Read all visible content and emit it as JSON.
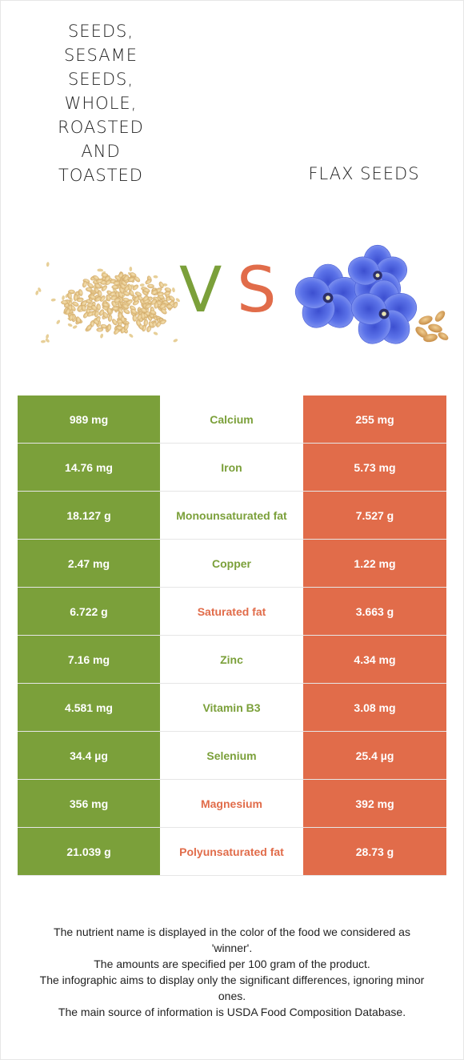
{
  "colors": {
    "winner_left": "#7ba03a",
    "winner_right": "#e16c4a",
    "background": "#ffffff"
  },
  "header": {
    "left_food": "Seeds,\nsesame\nseeds,\nwhole,\nroasted\nand\ntoasted",
    "right_food": "Flax seeds",
    "vs_v": "V",
    "vs_s": "S"
  },
  "images": {
    "left": "sesame-seeds-pile-image",
    "right": "flax-flowers-and-seeds-image"
  },
  "nutrients": [
    {
      "name": "Calcium",
      "left": "989 mg",
      "right": "255 mg",
      "winner": "left"
    },
    {
      "name": "Iron",
      "left": "14.76 mg",
      "right": "5.73 mg",
      "winner": "left"
    },
    {
      "name": "Monounsaturated fat",
      "left": "18.127 g",
      "right": "7.527 g",
      "winner": "left"
    },
    {
      "name": "Copper",
      "left": "2.47 mg",
      "right": "1.22 mg",
      "winner": "left"
    },
    {
      "name": "Saturated fat",
      "left": "6.722 g",
      "right": "3.663 g",
      "winner": "right"
    },
    {
      "name": "Zinc",
      "left": "7.16 mg",
      "right": "4.34 mg",
      "winner": "left"
    },
    {
      "name": "Vitamin B3",
      "left": "4.581 mg",
      "right": "3.08 mg",
      "winner": "left"
    },
    {
      "name": "Selenium",
      "left": "34.4 µg",
      "right": "25.4 µg",
      "winner": "left"
    },
    {
      "name": "Magnesium",
      "left": "356 mg",
      "right": "392 mg",
      "winner": "right"
    },
    {
      "name": "Polyunsaturated fat",
      "left": "21.039 g",
      "right": "28.73 g",
      "winner": "right"
    }
  ],
  "footnote": [
    "The nutrient name is displayed in the color of the food we considered as 'winner'.",
    "The amounts are specified per 100 gram of the product.",
    "The infographic aims to display only the significant differences, ignoring minor ones.",
    "The main source of information is USDA Food Composition Database."
  ]
}
